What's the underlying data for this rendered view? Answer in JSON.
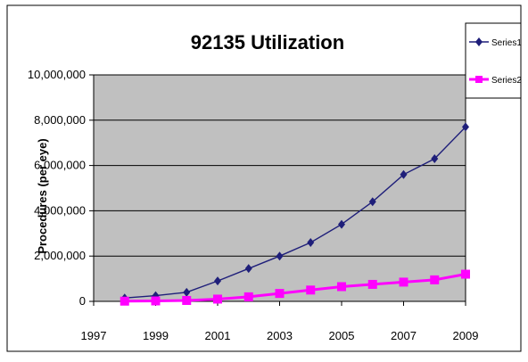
{
  "chart_data": {
    "type": "line",
    "title": "92135 Utilization",
    "xlabel": "",
    "ylabel": "Procedures (per eye)",
    "x": [
      1998,
      1999,
      2000,
      2001,
      2002,
      2003,
      2004,
      2005,
      2006,
      2007,
      2008,
      2009
    ],
    "xlim": [
      1997,
      2009
    ],
    "ylim": [
      0,
      10000000
    ],
    "x_ticks": [
      "1997",
      "1999",
      "2001",
      "2003",
      "2005",
      "2007",
      "2009"
    ],
    "y_ticks": [
      "0",
      "2,000,000",
      "4,000,000",
      "6,000,000",
      "8,000,000",
      "10,000,000"
    ],
    "grid": true,
    "legend_position": "right",
    "plot_background": "#c0c0c0",
    "series": [
      {
        "name": "Series1",
        "color": "#1f1f7a",
        "marker": "diamond",
        "values": [
          150000,
          250000,
          400000,
          900000,
          1450000,
          2000000,
          2600000,
          3400000,
          4400000,
          5600000,
          6300000,
          7700000
        ]
      },
      {
        "name": "Series2",
        "color": "#ff00ff",
        "marker": "square",
        "values": [
          10000,
          20000,
          40000,
          100000,
          200000,
          350000,
          500000,
          650000,
          750000,
          850000,
          950000,
          1200000
        ]
      }
    ]
  }
}
